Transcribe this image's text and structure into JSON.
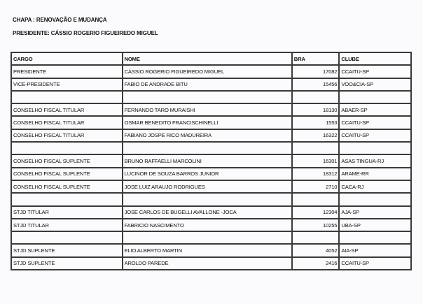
{
  "chapa": "CHAPA : RENOVAÇÃO E MUDANÇA",
  "presidente": "PRESIDENTE: CÁSSIO ROGERIO FIGUEIREDO MIGUEL",
  "table": {
    "headers": [
      "CARGO",
      "NOME",
      "BRA",
      "CLUBE"
    ],
    "rows": [
      [
        "PRESIDENTE",
        "CÁSSIO ROGERIO FIGUEIREDO MIGUEL",
        "17082",
        "CCAITU-SP"
      ],
      [
        "VICE-PRESIDENTE",
        "FABIO DE ANDRADE BITU",
        "15456",
        "VOO&CIA-SP"
      ],
      [
        "",
        "",
        "",
        ""
      ],
      [
        "CONSELHO FISCAL TITULAR",
        "FERNANDO TARO MURAISHI",
        "18130",
        "ABAER-SP"
      ],
      [
        "CONSELHO FISCAL TITULAR",
        "OSMAR BENEDITO FRANCISCHINELLI",
        "1553",
        "CCAITU-SP"
      ],
      [
        "CONSELHO FISCAL TITULAR",
        "FABIANO JOSPE RICO MADUREIRA",
        "16322",
        "CCAITU-SP"
      ],
      [
        "",
        "",
        "",
        ""
      ],
      [
        "CONSELHO FISCAL SUPLENTE",
        "BRUNO RAFFAELLI MARCOLINI",
        "16301",
        "ASAS TINGUA-RJ"
      ],
      [
        "CONSELHO FISCAL SUPLENTE",
        "LUCINOR DE SOUZA BARROS JUNIOR",
        "18312",
        "ARAME-RR"
      ],
      [
        "CONSELHO FISCAL SUPLENTE",
        "JOSE LUIZ ARAUJO RODRIGUES",
        "2710",
        "CACA-RJ"
      ],
      [
        "",
        "",
        "",
        ""
      ],
      [
        "STJD TITULAR",
        "JOSE CARLOS DE BUGELLI AVALLONE -JOCA",
        "12304",
        "AJA-SP"
      ],
      [
        "STJD TITULAR",
        "FABRICIO NASCIMENTO",
        "10255",
        "UBA-SP"
      ],
      [
        "",
        "",
        "",
        ""
      ],
      [
        "STJD SUPLENTE",
        "ELIO ALBERTO MARTIN",
        "4052",
        "AIA-SP"
      ],
      [
        "STJD SUPLENTE",
        "AROLDO PAREDE",
        "2416",
        "CCAITU-SP"
      ]
    ]
  }
}
